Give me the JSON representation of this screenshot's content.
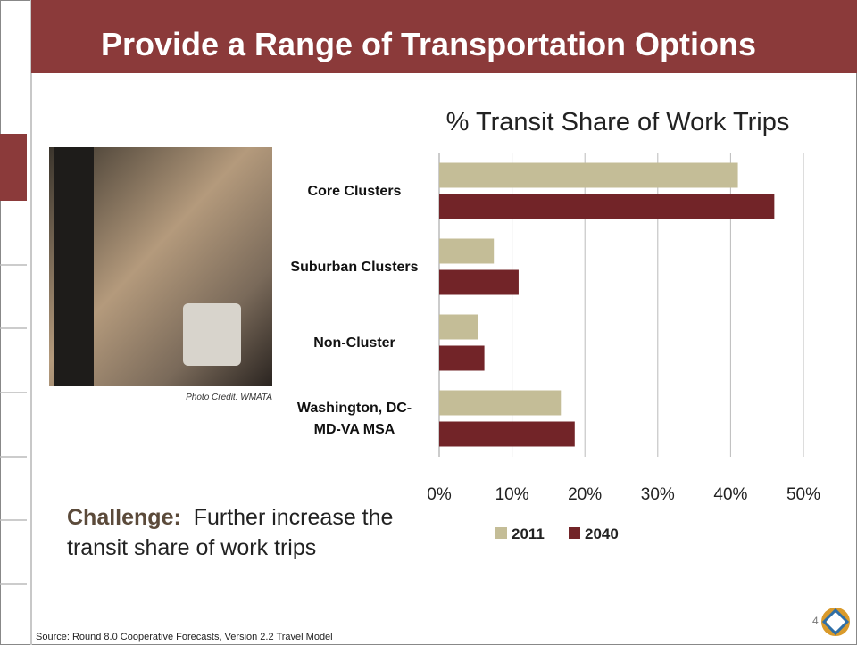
{
  "slide": {
    "title": "Provide a Range of Transportation Options",
    "photo_credit": "Photo Credit: WMATA",
    "challenge_label": "Challenge:",
    "challenge_text": "Further increase the transit share of work trips",
    "source": "Source: Round 8.0 Cooperative Forecasts, Version 2.2 Travel Model",
    "page_number": "4"
  },
  "chart_data": {
    "type": "bar",
    "orientation": "horizontal",
    "title": "% Transit Share of Work Trips",
    "categories": [
      "Core Clusters",
      "Suburban Clusters",
      "Non-Cluster",
      "Washington, DC-MD-VA MSA"
    ],
    "series": [
      {
        "name": "2011",
        "color": "#c4bd97",
        "values": [
          41,
          7.5,
          5.3,
          16.7
        ]
      },
      {
        "name": "2040",
        "color": "#722428",
        "values": [
          46,
          10.9,
          6.2,
          18.6
        ]
      }
    ],
    "xlim": [
      0,
      50
    ],
    "xticks": [
      {
        "value": 0,
        "label": "0%"
      },
      {
        "value": 10,
        "label": "10%"
      },
      {
        "value": 20,
        "label": "20%"
      },
      {
        "value": 30,
        "label": "30%"
      },
      {
        "value": 40,
        "label": "40%"
      },
      {
        "value": 50,
        "label": "50%"
      }
    ],
    "grid": true,
    "legend": "bottom"
  }
}
